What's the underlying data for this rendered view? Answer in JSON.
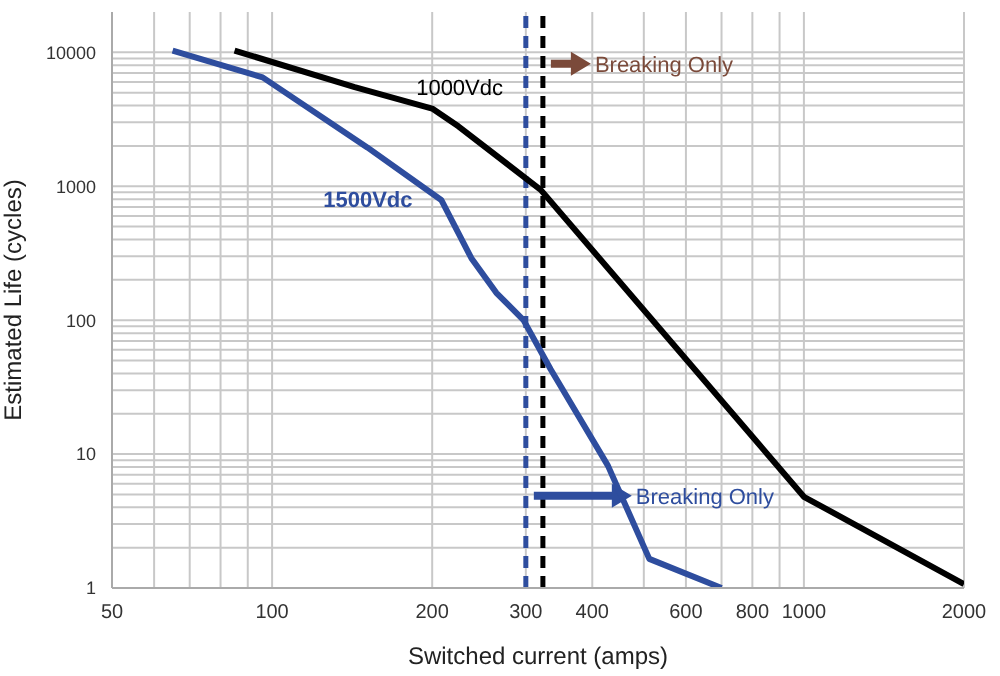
{
  "chart_data": {
    "type": "line",
    "xlabel": "Switched current (amps)",
    "ylabel": "Estimated Life (cycles)",
    "log": "xy",
    "grid": true,
    "legend": false,
    "marker": "none",
    "line_style": "solid",
    "xlim": [
      50,
      2000
    ],
    "ylim": [
      1,
      20000
    ],
    "xticks": [
      50,
      {
        "value": 60,
        "label": null
      },
      {
        "value": 70,
        "label": null
      },
      {
        "value": 80,
        "label": null
      },
      {
        "value": 90,
        "label": null
      },
      100,
      200,
      300,
      400,
      {
        "value": 500,
        "label": null
      },
      600,
      {
        "value": 700,
        "label": null
      },
      800,
      {
        "value": 900,
        "label": null
      },
      1000,
      2000
    ],
    "yticks": [
      1,
      {
        "value": 2,
        "label": null
      },
      {
        "value": 3,
        "label": null
      },
      {
        "value": 4,
        "label": null
      },
      {
        "value": 5,
        "label": null
      },
      {
        "value": 6,
        "label": null
      },
      {
        "value": 7,
        "label": null
      },
      {
        "value": 8,
        "label": null
      },
      {
        "value": 9,
        "label": null
      },
      10,
      {
        "value": 20,
        "label": null
      },
      {
        "value": 30,
        "label": null
      },
      {
        "value": 40,
        "label": null
      },
      {
        "value": 50,
        "label": null
      },
      {
        "value": 60,
        "label": null
      },
      {
        "value": 70,
        "label": null
      },
      {
        "value": 80,
        "label": null
      },
      {
        "value": 90,
        "label": null
      },
      100,
      {
        "value": 200,
        "label": null
      },
      {
        "value": 300,
        "label": null
      },
      {
        "value": 400,
        "label": null
      },
      {
        "value": 500,
        "label": null
      },
      {
        "value": 600,
        "label": null
      },
      {
        "value": 700,
        "label": null
      },
      {
        "value": 800,
        "label": null
      },
      {
        "value": 900,
        "label": null
      },
      1000,
      {
        "value": 2000,
        "label": null
      },
      {
        "value": 3000,
        "label": null
      },
      {
        "value": 4000,
        "label": null
      },
      {
        "value": 5000,
        "label": null
      },
      {
        "value": 6000,
        "label": null
      },
      {
        "value": 7000,
        "label": null
      },
      {
        "value": 8000,
        "label": null
      },
      {
        "value": 9000,
        "label": null
      },
      10000
    ],
    "series": [
      {
        "name": "1000Vdc",
        "color": "#000000",
        "x": [
          85,
          143,
          200,
          224,
          320,
          1000,
          2000
        ],
        "values": [
          10300,
          5500,
          3800,
          2800,
          940,
          4.8,
          1.07
        ]
      },
      {
        "name": "1500Vdc",
        "color": "#2e4d9e",
        "x": [
          65,
          96,
          151,
          208,
          237,
          264,
          297,
          334,
          428,
          512,
          700
        ],
        "values": [
          10300,
          6500,
          1950,
          790,
          290,
          160,
          100,
          43,
          8.2,
          1.65,
          1
        ]
      }
    ],
    "ref_lines": [
      {
        "axis": "x",
        "value": 323,
        "color": "#000000",
        "line_style": "dashed",
        "label": "Breaking Only"
      },
      {
        "axis": "x",
        "value": 300,
        "color": "#2e4d9e",
        "line_style": "dashed",
        "label": "Breaking Only"
      }
    ]
  }
}
